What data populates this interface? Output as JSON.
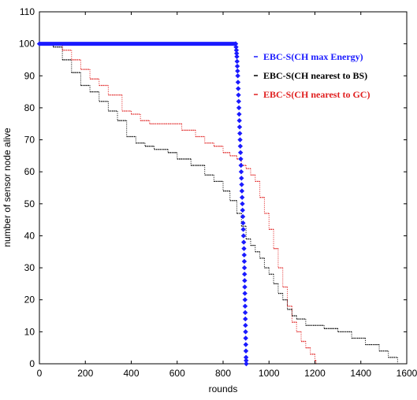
{
  "chart_data": {
    "type": "scatter",
    "title": "",
    "xlabel": "rounds",
    "ylabel": "number of sensor node alive",
    "xlim": [
      0,
      1600
    ],
    "ylim": [
      0,
      110
    ],
    "xticks": [
      0,
      200,
      400,
      600,
      800,
      1000,
      1200,
      1400,
      1600
    ],
    "yticks": [
      0,
      10,
      20,
      30,
      40,
      50,
      60,
      70,
      80,
      90,
      100,
      110
    ],
    "grid": false,
    "legend_position": "top-right",
    "series": [
      {
        "name": "EBC-S(CH max Energy)",
        "color": "#1a1aff",
        "marker": "diamond",
        "points": [
          [
            0,
            100
          ],
          [
            855,
            100
          ],
          [
            858,
            98
          ],
          [
            860,
            96
          ],
          [
            862,
            93
          ],
          [
            864,
            90
          ],
          [
            866,
            86
          ],
          [
            868,
            82
          ],
          [
            870,
            78
          ],
          [
            872,
            74
          ],
          [
            874,
            70
          ],
          [
            876,
            66
          ],
          [
            878,
            62
          ],
          [
            880,
            58
          ],
          [
            882,
            54
          ],
          [
            884,
            50
          ],
          [
            886,
            46
          ],
          [
            888,
            42
          ],
          [
            890,
            38
          ],
          [
            892,
            34
          ],
          [
            893,
            30
          ],
          [
            894,
            26
          ],
          [
            895,
            22
          ],
          [
            896,
            18
          ],
          [
            897,
            14
          ],
          [
            898,
            10
          ],
          [
            899,
            6
          ],
          [
            900,
            2
          ],
          [
            901,
            0
          ]
        ]
      },
      {
        "name": "EBC-S(CH nearest to BS)",
        "color": "#000000",
        "marker": "step",
        "points": [
          [
            0,
            100
          ],
          [
            40,
            100
          ],
          [
            60,
            99
          ],
          [
            100,
            95
          ],
          [
            140,
            91
          ],
          [
            180,
            87
          ],
          [
            220,
            85
          ],
          [
            260,
            82
          ],
          [
            300,
            79
          ],
          [
            340,
            76
          ],
          [
            380,
            71
          ],
          [
            420,
            69
          ],
          [
            460,
            68
          ],
          [
            500,
            67
          ],
          [
            560,
            66
          ],
          [
            600,
            64
          ],
          [
            660,
            62
          ],
          [
            720,
            59
          ],
          [
            760,
            57
          ],
          [
            800,
            54
          ],
          [
            830,
            51
          ],
          [
            860,
            47
          ],
          [
            880,
            43
          ],
          [
            900,
            39
          ],
          [
            920,
            37
          ],
          [
            940,
            35
          ],
          [
            960,
            33
          ],
          [
            980,
            30
          ],
          [
            1000,
            28
          ],
          [
            1020,
            25
          ],
          [
            1040,
            22
          ],
          [
            1060,
            20
          ],
          [
            1080,
            17
          ],
          [
            1100,
            15
          ],
          [
            1120,
            14
          ],
          [
            1160,
            12
          ],
          [
            1240,
            11
          ],
          [
            1300,
            10
          ],
          [
            1360,
            8
          ],
          [
            1420,
            6
          ],
          [
            1480,
            4
          ],
          [
            1520,
            2
          ],
          [
            1560,
            0
          ]
        ]
      },
      {
        "name": "EBC-S(CH nearest to GC)",
        "color": "#e02020",
        "marker": "step",
        "points": [
          [
            0,
            100
          ],
          [
            60,
            100
          ],
          [
            100,
            98
          ],
          [
            140,
            95
          ],
          [
            180,
            92
          ],
          [
            220,
            89
          ],
          [
            260,
            87
          ],
          [
            300,
            84
          ],
          [
            360,
            79
          ],
          [
            400,
            78
          ],
          [
            440,
            76
          ],
          [
            480,
            75
          ],
          [
            560,
            75
          ],
          [
            620,
            73
          ],
          [
            680,
            71
          ],
          [
            720,
            69
          ],
          [
            760,
            68
          ],
          [
            800,
            66
          ],
          [
            830,
            65
          ],
          [
            860,
            64
          ],
          [
            880,
            62
          ],
          [
            900,
            61
          ],
          [
            920,
            59
          ],
          [
            940,
            57
          ],
          [
            960,
            52
          ],
          [
            980,
            47
          ],
          [
            1000,
            42
          ],
          [
            1020,
            36
          ],
          [
            1040,
            30
          ],
          [
            1060,
            24
          ],
          [
            1080,
            18
          ],
          [
            1100,
            13
          ],
          [
            1120,
            10
          ],
          [
            1140,
            7
          ],
          [
            1160,
            5
          ],
          [
            1180,
            3
          ],
          [
            1200,
            1
          ],
          [
            1205,
            0
          ]
        ]
      }
    ]
  }
}
